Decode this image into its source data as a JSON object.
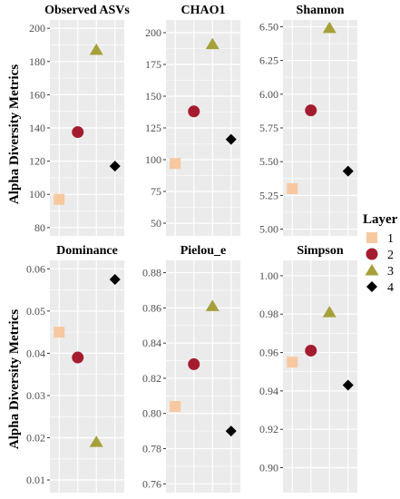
{
  "y_axis_label": "Alpha Diversity Metrics",
  "legend": {
    "title": "Layer",
    "items": [
      {
        "label": "1",
        "shape": "square",
        "color": "#F8C8A0"
      },
      {
        "label": "2",
        "shape": "circle",
        "color": "#A51C30"
      },
      {
        "label": "3",
        "shape": "triangle",
        "color": "#A6A03A"
      },
      {
        "label": "4",
        "shape": "diamond",
        "color": "#000000"
      }
    ]
  },
  "panel_background": "#EBEBEB",
  "chart_data": [
    {
      "type": "scatter",
      "title": "Observed ASVs",
      "ylim": [
        75,
        205
      ],
      "yticks": [
        "80",
        "100",
        "120",
        "140",
        "160",
        "180",
        "200"
      ],
      "x": [
        "1",
        "2",
        "3",
        "4"
      ],
      "values": [
        97,
        137.5,
        187,
        117
      ]
    },
    {
      "type": "scatter",
      "title": "CHAO1",
      "ylim": [
        40,
        210
      ],
      "yticks": [
        "50",
        "75",
        "100",
        "125",
        "150",
        "175",
        "200"
      ],
      "x": [
        "1",
        "2",
        "3",
        "4"
      ],
      "values": [
        97,
        138,
        191,
        116
      ]
    },
    {
      "type": "scatter",
      "title": "Shannon",
      "ylim": [
        4.95,
        6.55
      ],
      "yticks": [
        "5.00",
        "5.25",
        "5.50",
        "5.75",
        "6.00",
        "6.25",
        "6.50"
      ],
      "x": [
        "1",
        "2",
        "3",
        "4"
      ],
      "values": [
        5.3,
        5.88,
        6.49,
        5.43
      ]
    },
    {
      "type": "scatter",
      "title": "Dominance",
      "ylim": [
        0.007,
        0.062
      ],
      "yticks": [
        "0.01",
        "0.02",
        "0.03",
        "0.04",
        "0.05",
        "0.06"
      ],
      "x": [
        "1",
        "2",
        "3",
        "4"
      ],
      "values": [
        0.045,
        0.039,
        0.019,
        0.0575
      ]
    },
    {
      "type": "scatter",
      "title": "Pielou_e",
      "ylim": [
        0.755,
        0.887
      ],
      "yticks": [
        "0.76",
        "0.78",
        "0.80",
        "0.82",
        "0.84",
        "0.86",
        "0.88"
      ],
      "x": [
        "1",
        "2",
        "3",
        "4"
      ],
      "values": [
        0.804,
        0.828,
        0.861,
        0.79
      ]
    },
    {
      "type": "scatter",
      "title": "Simpson",
      "ylim": [
        0.887,
        1.008
      ],
      "yticks": [
        "0.90",
        "0.92",
        "0.94",
        "0.96",
        "0.98",
        "1.00"
      ],
      "x": [
        "1",
        "2",
        "3",
        "4"
      ],
      "values": [
        0.955,
        0.961,
        0.981,
        0.943
      ]
    }
  ]
}
